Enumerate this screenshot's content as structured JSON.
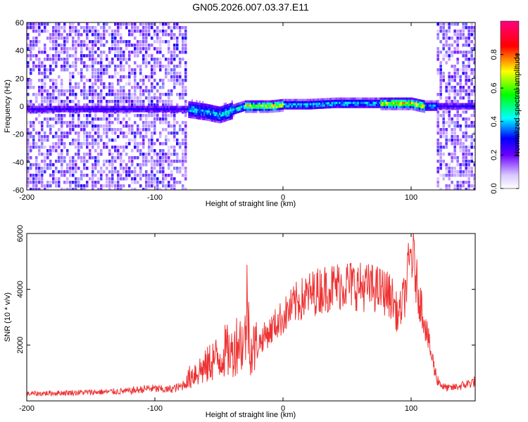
{
  "chart_data": [
    {
      "type": "heatmap",
      "title": "GN05.2026.007.03.37.E11",
      "xlabel": "Height of straight line (km)",
      "ylabel": "Frequency (Hz)",
      "xlim": [
        -200,
        150
      ],
      "ylim": [
        -60,
        60
      ],
      "xticks": [
        -200,
        -100,
        0,
        100
      ],
      "yticks": [
        -60,
        -40,
        -20,
        0,
        20,
        40,
        60
      ],
      "colorbar": {
        "label": "Normalized spectral amplitude",
        "range": [
          0.0,
          1.0
        ],
        "ticks": [
          "0.0",
          "0.2",
          "0.4",
          "0.6",
          "0.8"
        ],
        "colormap": [
          "#ffffff",
          "#6a00ff",
          "#0000ff",
          "#00ffff",
          "#00ff00",
          "#ffff00",
          "#ff0000",
          "#ff0080"
        ]
      },
      "regions": [
        {
          "x": [
            -200,
            -75
          ],
          "freq": [
            -60,
            60
          ],
          "amplitude": 0.15
        },
        {
          "x": [
            -75,
            -40
          ],
          "freq": [
            -8,
            6
          ],
          "amplitude": 0.35
        },
        {
          "x": [
            -40,
            0
          ],
          "freq": [
            -3,
            3
          ],
          "amplitude": 0.6
        },
        {
          "x": [
            0,
            120
          ],
          "freq": [
            -2,
            5
          ],
          "amplitude": 0.5
        },
        {
          "x": [
            120,
            150
          ],
          "freq": [
            -60,
            60
          ],
          "amplitude": 0.15
        }
      ],
      "ridge": {
        "x": [
          -75,
          -60,
          -50,
          -40,
          -30,
          -20,
          -10,
          0,
          20,
          40,
          60,
          80,
          90,
          100,
          110,
          120,
          135,
          150
        ],
        "freq": [
          -2,
          -4,
          -6,
          -3,
          0,
          0,
          0,
          1,
          1,
          2,
          2,
          2,
          2,
          2,
          0,
          0,
          0,
          0
        ]
      }
    },
    {
      "type": "line",
      "title": "",
      "xlabel": "Height of straight line (km)",
      "ylabel": "SNR (10 * v/v)",
      "xlim": [
        -200,
        150
      ],
      "ylim": [
        0,
        6000
      ],
      "xticks": [
        -200,
        -100,
        0,
        100
      ],
      "yticks": [
        2000,
        4000,
        6000
      ],
      "series": [
        {
          "color": "#ee3333",
          "x": [
            -200,
            -180,
            -160,
            -140,
            -120,
            -105,
            -90,
            -80,
            -75,
            -70,
            -65,
            -60,
            -55,
            -50,
            -45,
            -40,
            -35,
            -30,
            -28,
            -25,
            -20,
            -15,
            -10,
            -5,
            0,
            10,
            20,
            30,
            40,
            50,
            60,
            70,
            80,
            85,
            90,
            95,
            100,
            102,
            105,
            110,
            115,
            120,
            125,
            130,
            140,
            150
          ],
          "values": [
            250,
            280,
            300,
            320,
            350,
            450,
            400,
            500,
            700,
            1000,
            1100,
            1200,
            1500,
            1500,
            1800,
            1700,
            2200,
            2000,
            3500,
            1800,
            2000,
            2300,
            2500,
            2800,
            3000,
            3500,
            3800,
            4000,
            4100,
            4200,
            4100,
            4050,
            3900,
            3700,
            3000,
            3800,
            5300,
            5000,
            4000,
            3000,
            1800,
            800,
            500,
            450,
            550,
            700
          ]
        }
      ]
    }
  ]
}
